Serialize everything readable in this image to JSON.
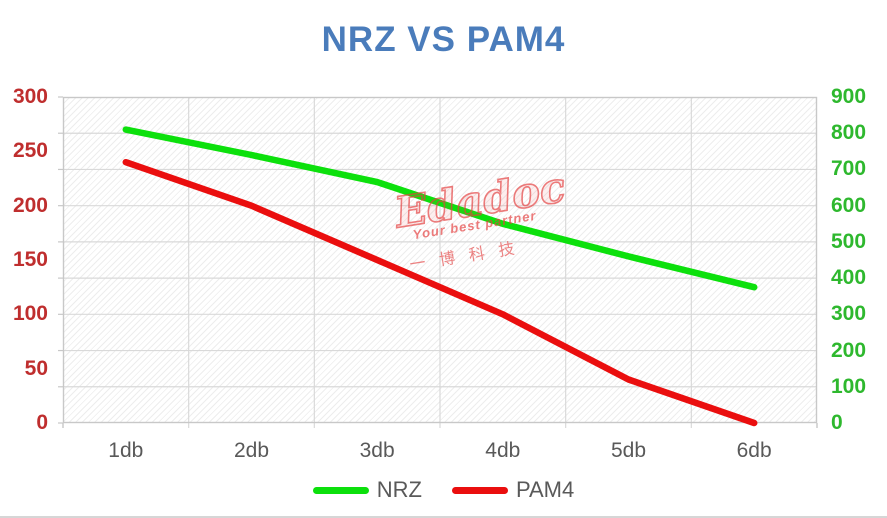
{
  "chart_data": {
    "type": "line",
    "title": "NRZ VS PAM4",
    "title_color": "#4a7cbb",
    "categories": [
      "1db",
      "2db",
      "3db",
      "4db",
      "5db",
      "6db"
    ],
    "series": [
      {
        "name": "NRZ",
        "axis": "right",
        "color": "#0ce00c",
        "values": [
          810,
          740,
          665,
          550,
          460,
          375
        ]
      },
      {
        "name": "PAM4",
        "axis": "left",
        "color": "#ea0e0e",
        "values": [
          240,
          200,
          150,
          100,
          40,
          0
        ]
      }
    ],
    "axes": {
      "left": {
        "min": 0,
        "max": 300,
        "step": 50,
        "color": "#bf2e2e",
        "tick_labels": [
          "300",
          "250",
          "200",
          "150",
          "100",
          "50",
          "0"
        ]
      },
      "right": {
        "min": 0,
        "max": 900,
        "step": 100,
        "color": "#2eb82e",
        "tick_labels": [
          "900",
          "800",
          "700",
          "600",
          "500",
          "400",
          "300",
          "200",
          "100",
          "0"
        ]
      }
    },
    "x_tick_color": "#595959",
    "grid": true,
    "gridline_color": "#d9d9d9",
    "plot_border_color": "#c8c8c8",
    "legend_position": "bottom"
  },
  "watermark": {
    "brand": "Edadoc",
    "tagline": "Your best partner",
    "cjk": "一博科技"
  }
}
